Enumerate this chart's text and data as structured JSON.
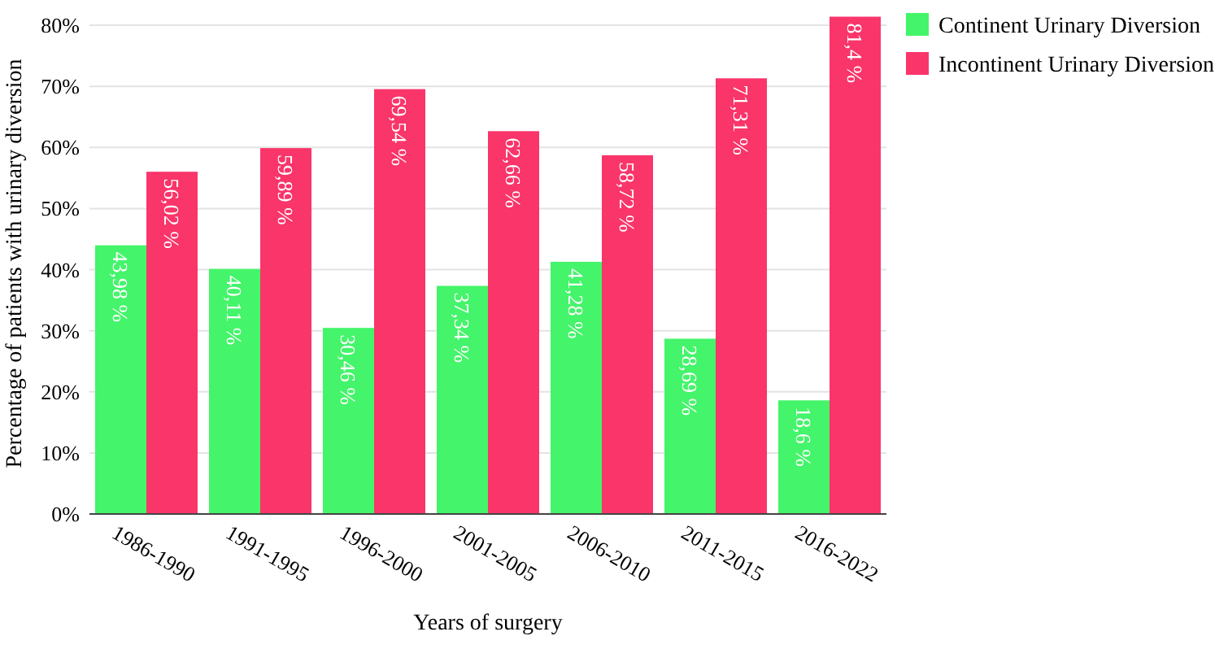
{
  "chart_data": {
    "type": "bar",
    "xlabel": "Years of surgery",
    "ylabel": "Percentage of patients with urinary diversion",
    "categories": [
      "1986-1990",
      "1991-1995",
      "1996-2000",
      "2001-2005",
      "2006-2010",
      "2011-2015",
      "2016-2022"
    ],
    "series": [
      {
        "name": "Continent Urinary Diversion",
        "color": "#44f46a",
        "values": [
          43.98,
          40.11,
          30.46,
          37.34,
          41.28,
          28.69,
          18.6
        ],
        "value_labels": [
          "43,98 %",
          "40,11 %",
          "30,46 %",
          "37,34 %",
          "41,28 %",
          "28,69 %",
          "18,6 %"
        ]
      },
      {
        "name": "Incontinent Urinary Diversion",
        "color": "#f9356a",
        "values": [
          56.02,
          59.89,
          69.54,
          62.66,
          58.72,
          71.31,
          81.4
        ],
        "value_labels": [
          "56,02 %",
          "59,89 %",
          "69,54 %",
          "62,66 %",
          "58,72 %",
          "71,31 %",
          "81,4 %"
        ]
      }
    ],
    "ylim": [
      0,
      82
    ],
    "yticks": [
      {
        "value": 0,
        "label": "0%"
      },
      {
        "value": 10,
        "label": "10%"
      },
      {
        "value": 20,
        "label": "20%"
      },
      {
        "value": 30,
        "label": "30%"
      },
      {
        "value": 40,
        "label": "40%"
      },
      {
        "value": 50,
        "label": "50%"
      },
      {
        "value": 60,
        "label": "60%"
      },
      {
        "value": 70,
        "label": "70%"
      },
      {
        "value": 80,
        "label": "80%"
      }
    ],
    "grid": "y",
    "legend": "top right"
  }
}
